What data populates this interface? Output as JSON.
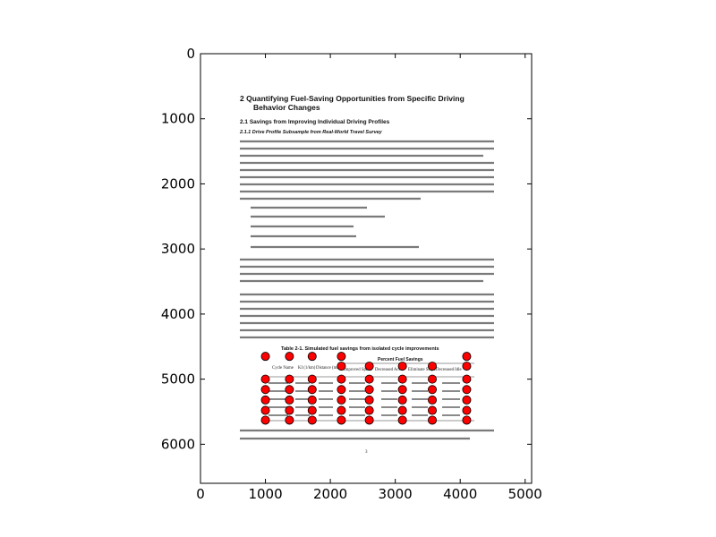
{
  "chart_data": {
    "type": "scatter",
    "xlim": [
      0,
      5100
    ],
    "ylim": [
      6600,
      0
    ],
    "x_ticks": [
      0,
      1000,
      2000,
      3000,
      4000,
      5000
    ],
    "y_ticks": [
      0,
      1000,
      2000,
      3000,
      4000,
      5000,
      6000
    ],
    "marker_color": "#ff0000",
    "marker_edge_color": "#000000",
    "grid": false,
    "series": [
      {
        "points": [
          {
            "x": 1000,
            "y": 4650
          },
          {
            "x": 1370,
            "y": 4650
          },
          {
            "x": 1720,
            "y": 4650
          },
          {
            "x": 2170,
            "y": 4650
          },
          {
            "x": 4100,
            "y": 4650
          },
          {
            "x": 2170,
            "y": 4800
          },
          {
            "x": 2600,
            "y": 4800
          },
          {
            "x": 3110,
            "y": 4800
          },
          {
            "x": 3570,
            "y": 4800
          },
          {
            "x": 4100,
            "y": 4800
          },
          {
            "x": 1000,
            "y": 5000
          },
          {
            "x": 1370,
            "y": 5000
          },
          {
            "x": 1720,
            "y": 5000
          },
          {
            "x": 2170,
            "y": 5000
          },
          {
            "x": 2600,
            "y": 5000
          },
          {
            "x": 3110,
            "y": 5000
          },
          {
            "x": 3570,
            "y": 5000
          },
          {
            "x": 4100,
            "y": 5000
          },
          {
            "x": 1000,
            "y": 5160
          },
          {
            "x": 1370,
            "y": 5160
          },
          {
            "x": 1720,
            "y": 5160
          },
          {
            "x": 2170,
            "y": 5160
          },
          {
            "x": 2600,
            "y": 5160
          },
          {
            "x": 3110,
            "y": 5160
          },
          {
            "x": 3570,
            "y": 5160
          },
          {
            "x": 4100,
            "y": 5160
          },
          {
            "x": 1000,
            "y": 5320
          },
          {
            "x": 1370,
            "y": 5320
          },
          {
            "x": 1720,
            "y": 5320
          },
          {
            "x": 2170,
            "y": 5320
          },
          {
            "x": 2600,
            "y": 5320
          },
          {
            "x": 3110,
            "y": 5320
          },
          {
            "x": 3570,
            "y": 5320
          },
          {
            "x": 4100,
            "y": 5320
          },
          {
            "x": 1000,
            "y": 5480
          },
          {
            "x": 1370,
            "y": 5480
          },
          {
            "x": 1720,
            "y": 5480
          },
          {
            "x": 2170,
            "y": 5480
          },
          {
            "x": 2600,
            "y": 5480
          },
          {
            "x": 3110,
            "y": 5480
          },
          {
            "x": 3570,
            "y": 5480
          },
          {
            "x": 4100,
            "y": 5480
          },
          {
            "x": 1000,
            "y": 5630
          },
          {
            "x": 1370,
            "y": 5630
          },
          {
            "x": 1720,
            "y": 5630
          },
          {
            "x": 2170,
            "y": 5630
          },
          {
            "x": 2600,
            "y": 5630
          },
          {
            "x": 3110,
            "y": 5630
          },
          {
            "x": 3570,
            "y": 5630
          },
          {
            "x": 4100,
            "y": 5630
          }
        ]
      }
    ]
  },
  "document": {
    "heading_1": "2   Quantifying Fuel-Saving Opportunities from Specific Driving",
    "heading_1b": "Behavior Changes",
    "heading_2": "2.1    Savings from Improving Individual Driving Profiles",
    "heading_3": "2.1.1    Drive Profile Subsample from Real-World Travel Survey",
    "table_title": "Table 2-1. Simulated fuel savings from isolated cycle improvements",
    "table_group_header": "Percent Fuel Savings",
    "table_headers": [
      "Cycle Name",
      "KI (1/km)",
      "Distance (mi)",
      "Improved Speed",
      "Decreased Accel",
      "Eliminate Stops",
      "Decreased Idle"
    ],
    "figure_caption": "Figure 2-1. Fuel savings from eliminating stops and decreasing idle ...",
    "page_number": "3"
  }
}
